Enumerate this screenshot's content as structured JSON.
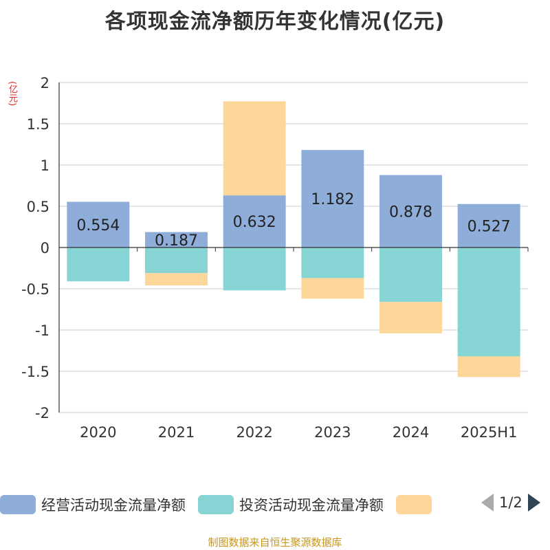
{
  "title": "各项现金流净额历年变化情况(亿元)",
  "unit_label": "(亿元)",
  "source": "制图数据来自恒生聚源数据库",
  "legend": {
    "items": [
      {
        "label": "经营活动现金流量净额",
        "color": "#8eadd9"
      },
      {
        "label": "投资活动现金流量净额",
        "color": "#86d4d4"
      },
      {
        "label": "",
        "color": "#fdd699"
      }
    ],
    "page": "1/2"
  },
  "chart_data": {
    "type": "bar",
    "stacked": true,
    "categories": [
      "2020",
      "2021",
      "2022",
      "2023",
      "2024",
      "2025H1"
    ],
    "series": [
      {
        "name": "经营活动现金流量净额",
        "color": "#8eadd9",
        "values": [
          0.554,
          0.187,
          0.632,
          1.182,
          0.878,
          0.527
        ],
        "labels": [
          "0.554",
          "0.187",
          "0.632",
          "1.182",
          "0.878",
          "0.527"
        ]
      },
      {
        "name": "投资活动现金流量净额",
        "color": "#86d4d4",
        "values": [
          -0.41,
          -0.31,
          -0.52,
          -0.37,
          -0.66,
          -1.32
        ]
      },
      {
        "color": "#fdd699",
        "values": [
          0.0,
          -0.15,
          1.14,
          -0.25,
          -0.38,
          -0.25
        ]
      }
    ],
    "ylim": [
      -2,
      2
    ],
    "yticks": [
      "-2",
      "-1.5",
      "-1",
      "-0.5",
      "0",
      "0.5",
      "1",
      "1.5",
      "2"
    ],
    "ytick_values": [
      -2,
      -1.5,
      -1,
      -0.5,
      0,
      0.5,
      1,
      1.5,
      2
    ],
    "grid": true
  }
}
